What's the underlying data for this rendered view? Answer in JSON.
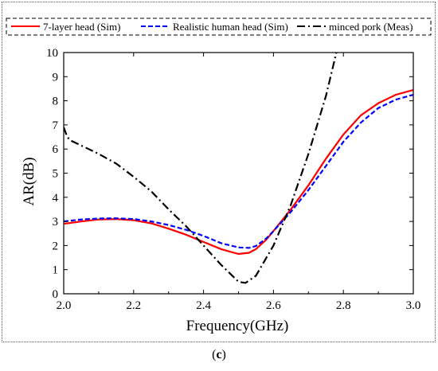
{
  "chart_data": {
    "type": "line",
    "title": "",
    "xlabel": "Frequency(GHz)",
    "ylabel": "AR(dB)",
    "xlim": [
      2.0,
      3.0
    ],
    "ylim": [
      0,
      10
    ],
    "xticks": [
      "2.0",
      "2.2",
      "2.4",
      "2.6",
      "2.8",
      "3.0"
    ],
    "yticks": [
      "0",
      "1",
      "2",
      "3",
      "4",
      "5",
      "6",
      "7",
      "8",
      "9",
      "10"
    ],
    "grid": false,
    "legend_position": "top",
    "series": [
      {
        "name": "7-layer head (Sim)",
        "color": "#ff0000",
        "style": "solid",
        "x": [
          2.0,
          2.05,
          2.1,
          2.15,
          2.2,
          2.25,
          2.3,
          2.35,
          2.4,
          2.45,
          2.5,
          2.53,
          2.55,
          2.58,
          2.6,
          2.65,
          2.7,
          2.75,
          2.8,
          2.85,
          2.9,
          2.95,
          3.0
        ],
        "y": [
          2.9,
          3.0,
          3.08,
          3.1,
          3.05,
          2.92,
          2.7,
          2.45,
          2.15,
          1.85,
          1.65,
          1.7,
          1.85,
          2.25,
          2.6,
          3.5,
          4.5,
          5.6,
          6.6,
          7.4,
          7.9,
          8.25,
          8.45
        ]
      },
      {
        "name": "Realistic human head (Sim)",
        "color": "#0000ff",
        "style": "dashed",
        "x": [
          2.0,
          2.05,
          2.1,
          2.15,
          2.2,
          2.25,
          2.3,
          2.35,
          2.4,
          2.45,
          2.5,
          2.53,
          2.55,
          2.58,
          2.6,
          2.65,
          2.7,
          2.75,
          2.8,
          2.85,
          2.9,
          2.95,
          3.0
        ],
        "y": [
          3.0,
          3.08,
          3.12,
          3.13,
          3.1,
          3.0,
          2.85,
          2.65,
          2.4,
          2.1,
          1.92,
          1.9,
          1.98,
          2.3,
          2.6,
          3.4,
          4.3,
          5.3,
          6.3,
          7.1,
          7.7,
          8.05,
          8.25
        ]
      },
      {
        "name": "minced pork (Meas)",
        "color": "#000000",
        "style": "dashdot",
        "x": [
          2.0,
          2.01,
          2.02,
          2.05,
          2.1,
          2.15,
          2.2,
          2.25,
          2.3,
          2.35,
          2.4,
          2.45,
          2.5,
          2.52,
          2.55,
          2.6,
          2.65,
          2.7,
          2.75,
          2.78
        ],
        "y": [
          6.9,
          6.5,
          6.35,
          6.15,
          5.8,
          5.4,
          4.85,
          4.25,
          3.5,
          2.8,
          2.0,
          1.2,
          0.5,
          0.45,
          0.75,
          2.0,
          3.7,
          5.8,
          8.2,
          10.0
        ]
      }
    ]
  },
  "caption": {
    "open": "(",
    "letter": "c",
    "close": ")"
  }
}
